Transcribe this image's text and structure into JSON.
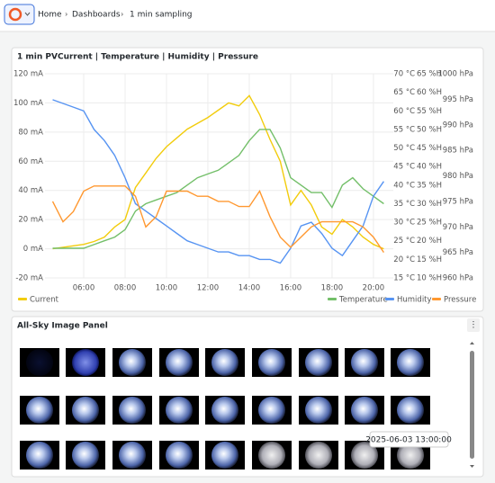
{
  "breadcrumb": [
    "Home",
    "Dashboards",
    "1 min sampling"
  ],
  "chart_data": {
    "type": "line",
    "title": "1 min PVCurrent | Temperature | Humidity | Pressure",
    "x": [
      4.5,
      5,
      5.5,
      6,
      6.5,
      7,
      7.5,
      8,
      8.5,
      9,
      9.5,
      10,
      10.5,
      11,
      11.5,
      12,
      12.5,
      13,
      13.5,
      14,
      14.5,
      15,
      15.5,
      16,
      16.5,
      17,
      17.5,
      18,
      18.5,
      19,
      19.5,
      20,
      20.5
    ],
    "xlim": [
      4.13,
      20.96
    ],
    "xticks": [
      {
        "value": 6,
        "label": "06:00"
      },
      {
        "value": 8,
        "label": "08:00"
      },
      {
        "value": 10,
        "label": "10:00"
      },
      {
        "value": 12,
        "label": "12:00"
      },
      {
        "value": 14,
        "label": "14:00"
      },
      {
        "value": 16,
        "label": "16:00"
      },
      {
        "value": 18,
        "label": "18:00"
      },
      {
        "value": 20,
        "label": "20:00"
      }
    ],
    "ylim": [
      -20,
      120
    ],
    "yticks": [
      {
        "value": -20,
        "label": "-20 mA"
      },
      {
        "value": 0,
        "label": "0 mA"
      },
      {
        "value": 20,
        "label": "20 mA"
      },
      {
        "value": 40,
        "label": "40 mA"
      },
      {
        "value": 60,
        "label": "60 mA"
      },
      {
        "value": 80,
        "label": "80 mA"
      },
      {
        "value": 100,
        "label": "100 mA"
      },
      {
        "value": 120,
        "label": "120 mA"
      }
    ],
    "y2lim": [
      15,
      70
    ],
    "y2ticks": [
      {
        "value": 70,
        "label": "70 °C"
      },
      {
        "value": 65,
        "label": "65 °C"
      },
      {
        "value": 60,
        "label": "60 °C"
      },
      {
        "value": 55,
        "label": "55 °C"
      },
      {
        "value": 50,
        "label": "50 °C"
      },
      {
        "value": 45,
        "label": "45 °C"
      },
      {
        "value": 40,
        "label": "40 °C"
      },
      {
        "value": 35,
        "label": "35 °C"
      },
      {
        "value": 30,
        "label": "30 °C"
      },
      {
        "value": 25,
        "label": "25 °C"
      },
      {
        "value": 20,
        "label": "20 °C"
      },
      {
        "value": 15,
        "label": "15 °C"
      }
    ],
    "y3lim": [
      10,
      65
    ],
    "y3ticks": [
      {
        "value": 65,
        "label": "65 %H"
      },
      {
        "value": 60,
        "label": "60 %H"
      },
      {
        "value": 55,
        "label": "55 %H"
      },
      {
        "value": 50,
        "label": "50 %H"
      },
      {
        "value": 45,
        "label": "45 %H"
      },
      {
        "value": 40,
        "label": "40 %H"
      },
      {
        "value": 35,
        "label": "35 %H"
      },
      {
        "value": 30,
        "label": "30 %H"
      },
      {
        "value": 25,
        "label": "25 %H"
      },
      {
        "value": 20,
        "label": "20 %H"
      },
      {
        "value": 15,
        "label": "15 %H"
      },
      {
        "value": 10,
        "label": "10 %H"
      }
    ],
    "y4lim": [
      960,
      1000
    ],
    "y4ticks": [
      {
        "value": 1000,
        "label": "1000 hPa"
      },
      {
        "value": 995,
        "label": "995 hPa"
      },
      {
        "value": 990,
        "label": "990 hPa"
      },
      {
        "value": 985,
        "label": "985 hPa"
      },
      {
        "value": 980,
        "label": "980 hPa"
      },
      {
        "value": 975,
        "label": "975 hPa"
      },
      {
        "value": 970,
        "label": "970 hPa"
      },
      {
        "value": 965,
        "label": "965 hPa"
      },
      {
        "value": 960,
        "label": "960 hPa"
      }
    ],
    "grid": true,
    "series": [
      {
        "name": "Current",
        "color": "#f2cc0c",
        "axis": "y",
        "values": [
          0,
          1,
          2,
          3,
          5,
          8,
          15,
          20,
          42,
          52,
          62,
          70,
          76,
          82,
          86,
          90,
          95,
          100,
          98,
          105,
          92,
          75,
          60,
          30,
          40,
          30,
          15,
          10,
          20,
          15,
          8,
          3,
          0
        ]
      },
      {
        "name": "Temperature",
        "color": "#73bf69",
        "axis": "y2",
        "values": [
          23,
          23,
          23,
          23,
          24,
          25,
          26,
          28,
          33,
          35,
          36,
          37,
          38,
          40,
          42,
          43,
          44,
          46,
          48,
          52,
          55,
          55,
          50,
          42,
          40,
          38,
          38,
          34,
          40,
          42,
          39,
          37,
          35
        ]
      },
      {
        "name": "Humidity",
        "color": "#5794f2",
        "axis": "y3",
        "values": [
          58,
          57,
          56,
          55,
          50,
          47,
          43,
          37,
          30,
          28,
          26,
          24,
          22,
          20,
          19,
          18,
          17,
          17,
          16,
          16,
          15,
          15,
          14,
          18,
          24,
          25,
          22,
          18,
          16,
          20,
          24,
          32,
          36
        ]
      },
      {
        "name": "Pressure",
        "color": "#ff9830",
        "axis": "y4",
        "values": [
          975,
          971,
          973,
          977,
          978,
          978,
          978,
          978,
          976,
          970,
          972,
          977,
          977,
          977,
          976,
          976,
          975,
          975,
          974,
          974,
          977,
          972,
          968,
          966,
          968,
          970,
          971,
          971,
          971,
          971,
          970,
          968,
          965
        ]
      }
    ]
  },
  "image_panel": {
    "title": "All-Sky Image Panel",
    "tooltip": "2025-06-03 13:00:00"
  }
}
